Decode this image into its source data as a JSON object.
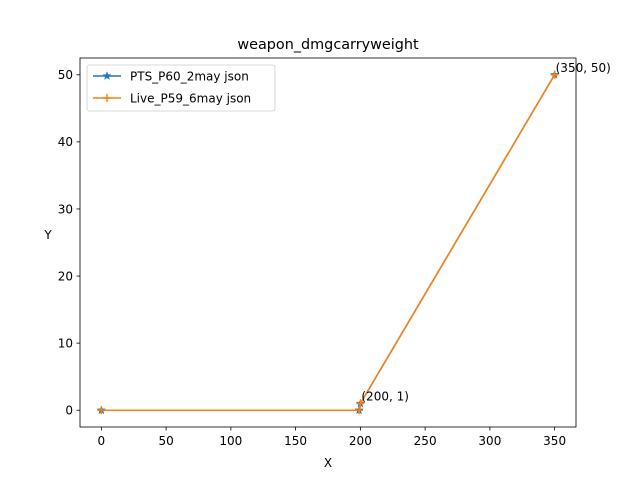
{
  "chart_data": {
    "type": "line",
    "title": "weapon_dmgcarryweight",
    "xlabel": "X",
    "ylabel": "Y",
    "xlim": [
      -16.5,
      366.5
    ],
    "ylim": [
      -2.5,
      52.5
    ],
    "xticks": [
      0,
      50,
      100,
      150,
      200,
      250,
      300,
      350
    ],
    "yticks": [
      0,
      10,
      20,
      30,
      40,
      50
    ],
    "grid": false,
    "legend_position": "top-left",
    "series": [
      {
        "name": "PTS_P60_2may json",
        "color": "#1f77b4",
        "marker": "star",
        "x": [
          0,
          199,
          200,
          350
        ],
        "y": [
          0,
          0,
          1,
          50
        ]
      },
      {
        "name": "Live_P59_6may json",
        "color": "#ff7f0e",
        "marker": "plus",
        "x": [
          0,
          199,
          200,
          350
        ],
        "y": [
          0,
          0,
          1,
          50
        ]
      }
    ],
    "annotations": [
      {
        "text": "(200, 1)",
        "x": 200,
        "y": 1
      },
      {
        "text": "(350, 50)",
        "x": 350,
        "y": 50
      }
    ]
  }
}
